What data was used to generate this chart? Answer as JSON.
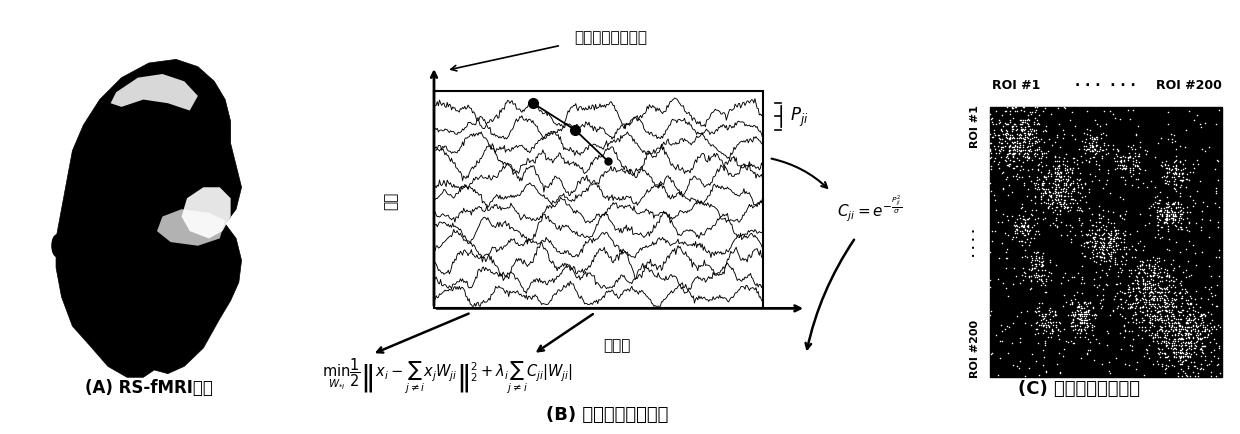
{
  "background_color": "#ffffff",
  "panel_A_label": "(A) RS-fMRI数据",
  "panel_B_label": "(B) 加权稀疏表征方法",
  "panel_C_label": "(C) 人脑功能连接网络",
  "bold_signal_label": "血氧水平依赖信号",
  "brain_region_label": "脑区",
  "time_point_label": "时间点",
  "pji_label": "$}P_{ji}$",
  "cji_formula": "$C_{ji} = e^{-\\dfrac{P_{ji}^2}{\\sigma}}$",
  "min_formula": "$\\underset{W_{*i}}{\\min}\\dfrac{1}{2}\\left\\|x_i - \\sum_{j\\neq i} x_j W_{ji}\\right\\|_2^2 + \\lambda_i \\sum_{j\\neq i} C_{ji}|W_{ji}|$",
  "roi_top_left": "ROI #1",
  "roi_top_dots": "· · ·  · · ·",
  "roi_top_right": "ROI #200",
  "roi_left_top": "ROI #1",
  "roi_left_dots": "· · · ·",
  "roi_left_bottom": "ROI #200"
}
